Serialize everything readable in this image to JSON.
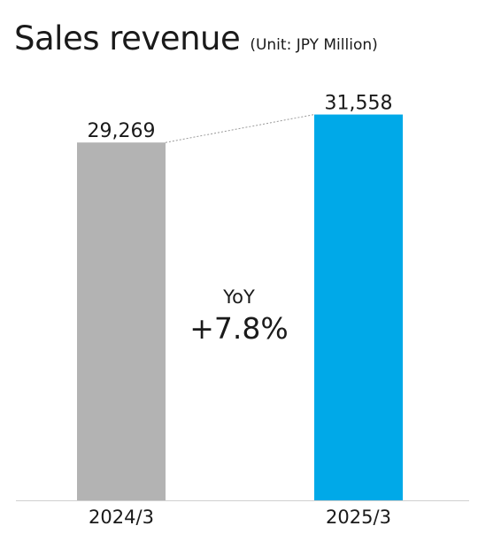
{
  "chart_data": {
    "type": "bar",
    "title": "Sales revenue",
    "subtitle": "(Unit: JPY Million)",
    "categories": [
      "2024/3",
      "2025/3"
    ],
    "values": [
      29269,
      31558
    ],
    "value_labels": [
      "29,269",
      "31,558"
    ],
    "bar_colors": [
      "#b3b3b3",
      "#00a9e8"
    ],
    "connector_line": "dashed",
    "annotation": {
      "label": "YoY",
      "value": "+7.8%"
    },
    "xlabel": "",
    "ylabel": "",
    "grid": false,
    "legend": "none"
  }
}
